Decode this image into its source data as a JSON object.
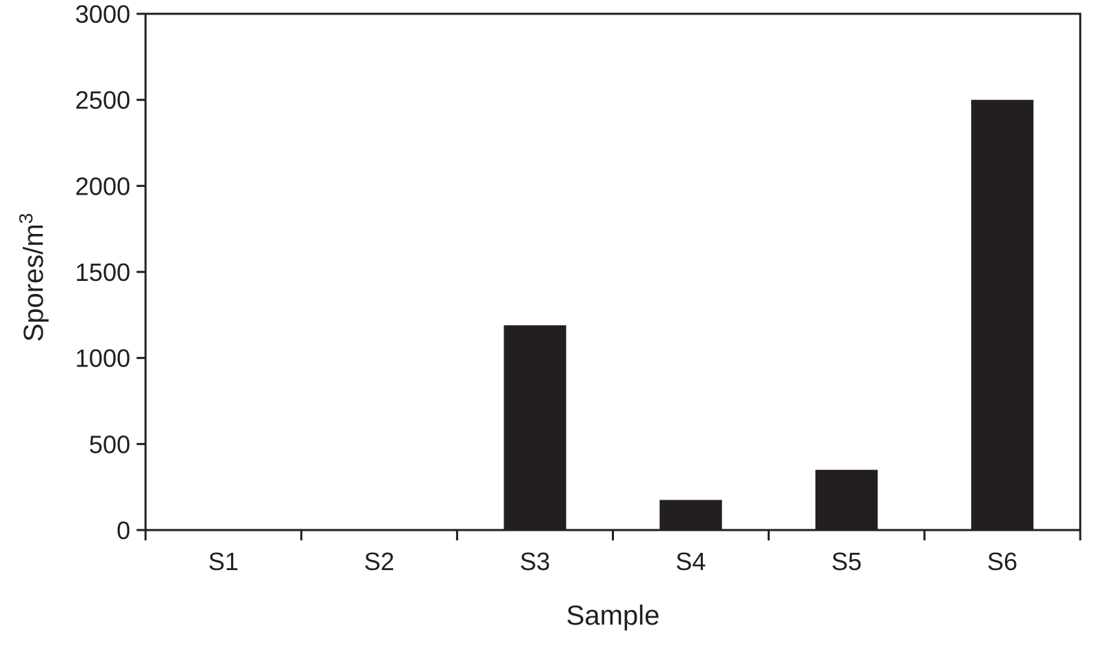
{
  "chart_data": {
    "type": "bar",
    "categories": [
      "S1",
      "S2",
      "S3",
      "S4",
      "S5",
      "S6"
    ],
    "series": [
      {
        "values": [
          0,
          0,
          1190,
          175,
          350,
          2500
        ]
      }
    ],
    "title": "",
    "xlabel": "Sample",
    "ylabel": "Spores/m",
    "ylabel_superscript": "3",
    "ylim": [
      0,
      3000
    ],
    "yticks": [
      0,
      500,
      1000,
      1500,
      2000,
      2500,
      3000
    ],
    "grid": false,
    "legend": "none",
    "colors": {
      "bar": "#231f20",
      "axis": "#231f20",
      "text": "#231f20",
      "background": "#ffffff"
    }
  }
}
